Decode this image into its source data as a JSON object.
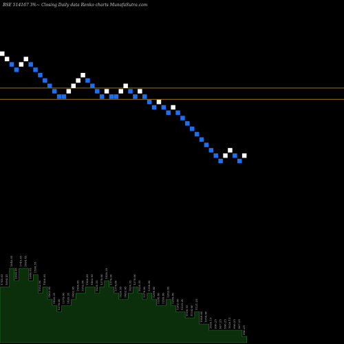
{
  "title": "BSE 514167 3%~ Closing Daily data Renko charts MunafaSutra.com",
  "colors": {
    "background": "#000000",
    "up_brick": "#ffffff",
    "down_brick": "#1e6ef0",
    "reference_line": "#b8860b",
    "volume_fill": "#0a2f0a",
    "volume_edge": "#2e7d32"
  },
  "chart_data": {
    "type": "renko",
    "brick_percent": 3,
    "bricks": [
      {
        "y": 96,
        "dir": "up"
      },
      {
        "y": 95,
        "dir": "up"
      },
      {
        "y": 94,
        "dir": "down"
      },
      {
        "y": 93,
        "dir": "down"
      },
      {
        "y": 94,
        "dir": "up"
      },
      {
        "y": 95,
        "dir": "up"
      },
      {
        "y": 94,
        "dir": "down"
      },
      {
        "y": 93,
        "dir": "down"
      },
      {
        "y": 92,
        "dir": "down"
      },
      {
        "y": 91,
        "dir": "down"
      },
      {
        "y": 90,
        "dir": "down"
      },
      {
        "y": 89,
        "dir": "down"
      },
      {
        "y": 88,
        "dir": "down"
      },
      {
        "y": 88,
        "dir": "down"
      },
      {
        "y": 89,
        "dir": "up"
      },
      {
        "y": 90,
        "dir": "up"
      },
      {
        "y": 91,
        "dir": "up"
      },
      {
        "y": 92,
        "dir": "up"
      },
      {
        "y": 91,
        "dir": "down"
      },
      {
        "y": 90,
        "dir": "down"
      },
      {
        "y": 89,
        "dir": "down"
      },
      {
        "y": 88,
        "dir": "down"
      },
      {
        "y": 89,
        "dir": "up"
      },
      {
        "y": 88,
        "dir": "down"
      },
      {
        "y": 88,
        "dir": "down"
      },
      {
        "y": 89,
        "dir": "up"
      },
      {
        "y": 90,
        "dir": "up"
      },
      {
        "y": 89,
        "dir": "down"
      },
      {
        "y": 88,
        "dir": "down"
      },
      {
        "y": 89,
        "dir": "up"
      },
      {
        "y": 88,
        "dir": "down"
      },
      {
        "y": 87,
        "dir": "down"
      },
      {
        "y": 86,
        "dir": "down"
      },
      {
        "y": 87,
        "dir": "up"
      },
      {
        "y": 86,
        "dir": "down"
      },
      {
        "y": 85,
        "dir": "down"
      },
      {
        "y": 86,
        "dir": "up"
      },
      {
        "y": 85,
        "dir": "down"
      },
      {
        "y": 84,
        "dir": "down"
      },
      {
        "y": 83,
        "dir": "down"
      },
      {
        "y": 82,
        "dir": "down"
      },
      {
        "y": 81,
        "dir": "down"
      },
      {
        "y": 80,
        "dir": "down"
      },
      {
        "y": 79,
        "dir": "down"
      },
      {
        "y": 78,
        "dir": "down"
      },
      {
        "y": 77,
        "dir": "down"
      },
      {
        "y": 76,
        "dir": "down"
      },
      {
        "y": 77,
        "dir": "up"
      },
      {
        "y": 78,
        "dir": "up"
      },
      {
        "y": 77,
        "dir": "down"
      },
      {
        "y": 76,
        "dir": "down"
      },
      {
        "y": 77,
        "dir": "up"
      }
    ],
    "reference_lines": [
      89.6,
      87.5
    ],
    "volume": [
      9,
      9,
      12,
      10,
      12,
      12,
      10,
      11,
      8,
      9,
      7,
      6,
      5,
      6,
      6,
      7,
      8,
      8,
      9,
      9,
      8,
      9,
      10,
      9,
      8,
      7,
      7,
      8,
      9,
      8,
      7,
      8,
      7,
      6,
      6,
      7,
      6,
      5,
      5,
      4,
      4,
      5,
      3,
      3,
      2,
      2,
      2,
      2,
      2,
      2,
      2,
      1
    ],
    "volume_labels": [
      "1745.65",
      "1694.45",
      "1646.05",
      "1694.45",
      "1745.65",
      "1694.45",
      "1646.05",
      "1598.55",
      "1552.00",
      "1506.85",
      "1462.95",
      "1420.35",
      "1379.00",
      "1379.00",
      "1420.35",
      "1462.95",
      "1506.85",
      "1552.00",
      "1506.85",
      "1462.95",
      "1420.35",
      "1379.00",
      "1420.35",
      "1379.00",
      "1379.00",
      "1420.35",
      "1462.95",
      "1420.35",
      "1379.00",
      "1420.35",
      "1379.00",
      "1338.80",
      "1299.80",
      "1338.80",
      "1299.80",
      "1262.00",
      "1299.80",
      "1262.00",
      "1225.20",
      "1189.55",
      "1154.90",
      "1121.25",
      "1088.60",
      "1056.90",
      "1026.15",
      "996.25",
      "967.25",
      "996.25",
      "1026.15",
      "996.25",
      "967.25",
      "996.25"
    ]
  }
}
